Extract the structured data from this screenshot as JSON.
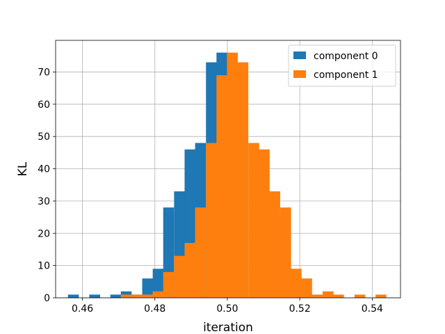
{
  "chart_data": {
    "type": "bar",
    "subtype": "histogram",
    "xlabel": "iteration",
    "ylabel": "KL",
    "xlim": [
      0.4526,
      0.5478
    ],
    "ylim": [
      0,
      79.8
    ],
    "xticks": [
      0.46,
      0.48,
      0.5,
      0.52,
      0.54
    ],
    "xtick_labels": [
      "0.46",
      "0.48",
      "0.50",
      "0.52",
      "0.54"
    ],
    "yticks": [
      0,
      10,
      20,
      30,
      40,
      50,
      60,
      70
    ],
    "ytick_labels": [
      "0",
      "10",
      "20",
      "30",
      "40",
      "50",
      "60",
      "70"
    ],
    "grid": true,
    "legend_position": "top-right",
    "series": [
      {
        "name": "component 0",
        "color": "#1f77b4",
        "bin_width": 0.00293,
        "bins": [
          [
            0.456,
            1
          ],
          [
            0.4589,
            0
          ],
          [
            0.4619,
            1
          ],
          [
            0.4648,
            0
          ],
          [
            0.4677,
            1
          ],
          [
            0.4706,
            2
          ],
          [
            0.4736,
            1
          ],
          [
            0.4765,
            6
          ],
          [
            0.4794,
            9
          ],
          [
            0.4823,
            28
          ],
          [
            0.4853,
            33
          ],
          [
            0.4882,
            46
          ],
          [
            0.4911,
            48
          ],
          [
            0.4941,
            73
          ],
          [
            0.497,
            76
          ]
        ]
      },
      {
        "name": "component 1",
        "color": "#ff7f0e",
        "bin_width": 0.00293,
        "bins": [
          [
            0.4706,
            1
          ],
          [
            0.4736,
            1
          ],
          [
            0.4765,
            1
          ],
          [
            0.4794,
            2
          ],
          [
            0.4823,
            8
          ],
          [
            0.4853,
            13
          ],
          [
            0.4882,
            17
          ],
          [
            0.4911,
            28
          ],
          [
            0.4941,
            48
          ],
          [
            0.497,
            69
          ],
          [
            0.4999,
            76
          ],
          [
            0.5028,
            73
          ],
          [
            0.5058,
            48
          ],
          [
            0.5087,
            46
          ],
          [
            0.5116,
            33
          ],
          [
            0.5146,
            28
          ],
          [
            0.5175,
            9
          ],
          [
            0.5204,
            6
          ],
          [
            0.5233,
            1
          ],
          [
            0.5263,
            2
          ],
          [
            0.5292,
            1
          ],
          [
            0.5321,
            0
          ],
          [
            0.5351,
            1
          ],
          [
            0.538,
            0
          ],
          [
            0.5409,
            1
          ]
        ]
      }
    ]
  }
}
